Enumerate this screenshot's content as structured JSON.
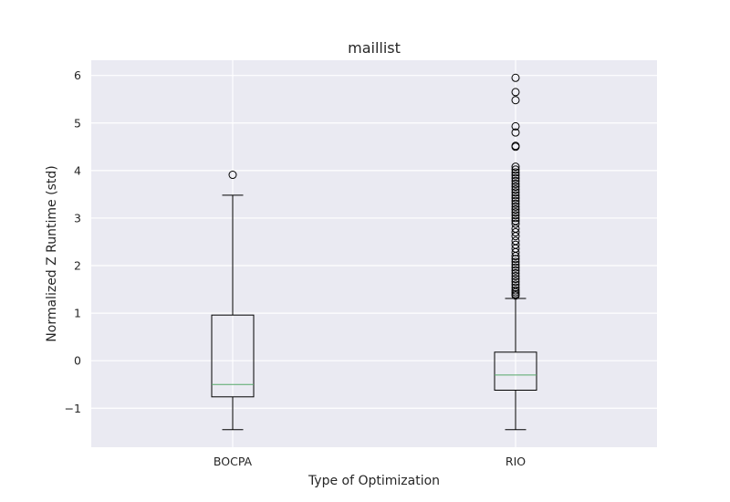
{
  "chart_data": {
    "type": "boxplot",
    "title": "maillist",
    "xlabel": "Type of Optimization",
    "ylabel": "Normalized Z Runtime (std)",
    "ylim": [
      -1.82,
      6.32
    ],
    "yticks": [
      -1,
      0,
      1,
      2,
      3,
      4,
      5,
      6
    ],
    "ytick_labels": [
      "−1",
      "0",
      "1",
      "2",
      "3",
      "4",
      "5",
      "6"
    ],
    "grid": true,
    "background": "#eaeaf2",
    "median_color": "#55a868",
    "categories": [
      "BOCPA",
      "RIO"
    ],
    "boxes": [
      {
        "label": "BOCPA",
        "whisker_low": -1.45,
        "q1": -0.76,
        "median": -0.5,
        "q3": 0.96,
        "whisker_high": 3.48,
        "outliers": [
          3.91
        ]
      },
      {
        "label": "RIO",
        "whisker_low": -1.45,
        "q1": -0.62,
        "median": -0.3,
        "q3": 0.18,
        "whisker_high": 1.31,
        "outliers": [
          5.95,
          5.65,
          5.48,
          4.93,
          4.8,
          4.52,
          4.5,
          4.08,
          4.02,
          3.96,
          3.9,
          3.84,
          3.78,
          3.72,
          3.66,
          3.6,
          3.54,
          3.48,
          3.42,
          3.36,
          3.3,
          3.24,
          3.18,
          3.12,
          3.06,
          3.0,
          2.94,
          2.88,
          2.78,
          2.7,
          2.62,
          2.52,
          2.44,
          2.36,
          2.28,
          2.2,
          2.14,
          2.08,
          2.02,
          1.96,
          1.9,
          1.84,
          1.78,
          1.72,
          1.66,
          1.6,
          1.54,
          1.48,
          1.44,
          1.4,
          1.37
        ]
      }
    ]
  }
}
